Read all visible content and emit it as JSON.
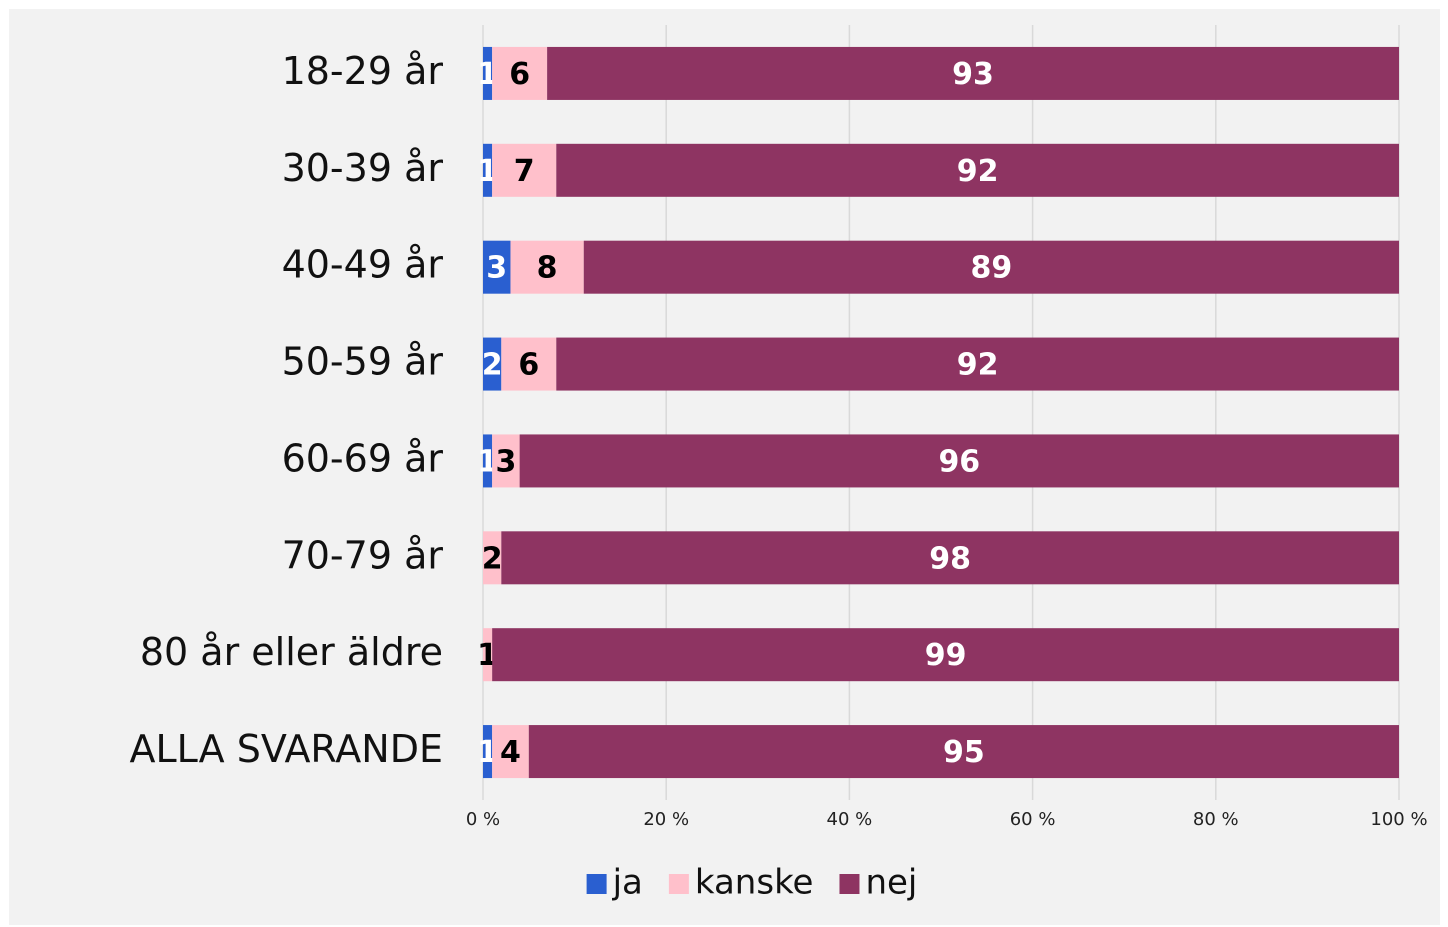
{
  "chart_data": {
    "type": "stacked-bar-horizontal",
    "categories": [
      "18-29 år",
      "30-39 år",
      "40-49 år",
      "50-59 år",
      "60-69 år",
      "70-79 år",
      "80 år eller äldre",
      "ALLA SVARANDE"
    ],
    "series": [
      {
        "name": "ja",
        "color": "#2a5fd0",
        "values": [
          1,
          1,
          3,
          2,
          1,
          0,
          0,
          1
        ]
      },
      {
        "name": "kanske",
        "color": "#ffc0cb",
        "values": [
          6,
          7,
          8,
          6,
          3,
          2,
          1,
          4
        ]
      },
      {
        "name": "nej",
        "color": "#8e3462",
        "values": [
          93,
          92,
          89,
          92,
          96,
          98,
          99,
          95
        ]
      }
    ],
    "xlim": [
      0,
      100
    ],
    "xticks": [
      {
        "value": 0,
        "label": "0 %"
      },
      {
        "value": 20,
        "label": "20 %"
      },
      {
        "value": 40,
        "label": "40 %"
      },
      {
        "value": 60,
        "label": "60 %"
      },
      {
        "value": 80,
        "label": "80 %"
      },
      {
        "value": 100,
        "label": "100 %"
      }
    ],
    "grid": true,
    "legend": "bottom"
  }
}
